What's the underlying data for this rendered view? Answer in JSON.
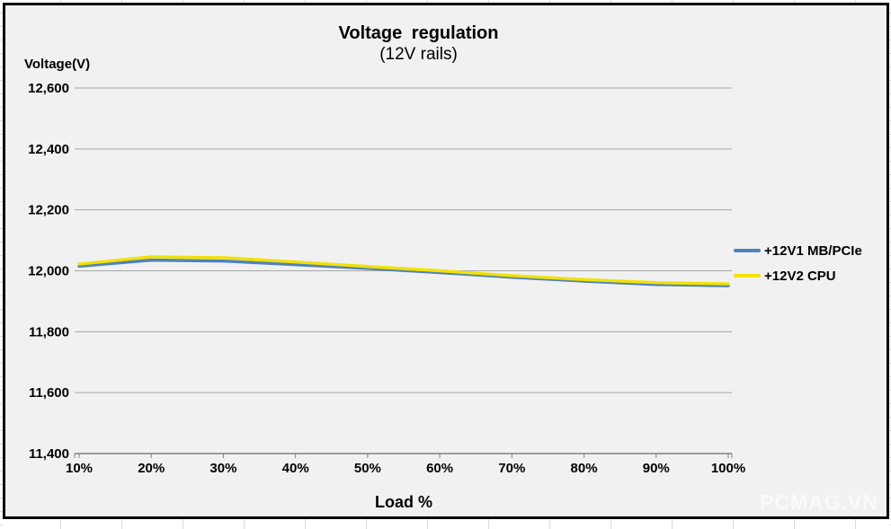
{
  "watermark": "PCMAG.VN",
  "colors": {
    "chart_background": "#f1f1f2",
    "frame_border": "#000000",
    "gridline": "#a6a6a6",
    "axis_line": "#7f7f7f",
    "text": "#000000",
    "watermark_text": "#fafafa"
  },
  "chart_data": {
    "type": "line",
    "title": "Voltage regulation",
    "subtitle": "(12V rails)",
    "y_axis_title": "Voltage(V)",
    "x_axis_title": "Load %",
    "categories": [
      "10%",
      "20%",
      "30%",
      "40%",
      "50%",
      "60%",
      "70%",
      "80%",
      "90%",
      "100%"
    ],
    "y_tick_labels": [
      "12,600",
      "12,400",
      "12,200",
      "12,000",
      "11,800",
      "11,600",
      "11,400"
    ],
    "ylim": [
      11400,
      12600
    ],
    "y_step": 200,
    "grid": true,
    "legend_position": "right",
    "series": [
      {
        "name": "+12V1 MB/PCIe",
        "color": "#4f81bd",
        "values": [
          12015,
          12035,
          12032,
          12020,
          12008,
          11994,
          11979,
          11966,
          11955,
          11951
        ]
      },
      {
        "name": "+12V2 CPU",
        "color": "#f1e104",
        "values": [
          12022,
          12046,
          12043,
          12029,
          12014,
          12000,
          11984,
          11971,
          11961,
          11957
        ]
      }
    ]
  }
}
